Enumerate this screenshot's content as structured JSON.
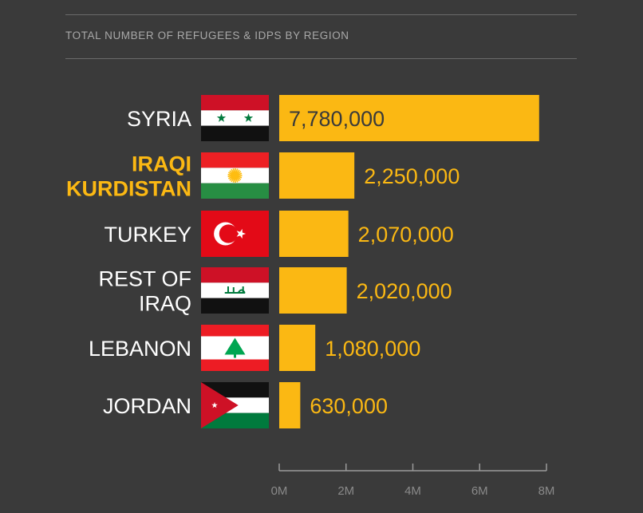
{
  "page": {
    "background": "#3a3a3a"
  },
  "chart_data": {
    "type": "bar",
    "orientation": "horizontal",
    "title": "TOTAL NUMBER OF REFUGEES & IDPS BY REGION",
    "categories": [
      {
        "label": [
          "SYRIA"
        ],
        "highlight": false,
        "flag": "syria-flag"
      },
      {
        "label": [
          "IRAQI",
          "KURDISTAN"
        ],
        "highlight": true,
        "flag": "kurdistan-flag"
      },
      {
        "label": [
          "TURKEY"
        ],
        "highlight": false,
        "flag": "turkey-flag"
      },
      {
        "label": [
          "REST OF",
          "IRAQ"
        ],
        "highlight": false,
        "flag": "iraq-flag"
      },
      {
        "label": [
          "LEBANON"
        ],
        "highlight": false,
        "flag": "lebanon-flag"
      },
      {
        "label": [
          "JORDAN"
        ],
        "highlight": false,
        "flag": "jordan-flag"
      }
    ],
    "values": [
      7780000,
      2250000,
      2070000,
      2020000,
      1080000,
      630000
    ],
    "value_labels": [
      "7,780,000",
      "2,250,000",
      "2,070,000",
      "2,020,000",
      "1,080,000",
      "630,000"
    ],
    "xlim": [
      0,
      8000000
    ],
    "ticks": [
      0,
      2000000,
      4000000,
      6000000,
      8000000
    ],
    "tick_labels": [
      "0M",
      "2M",
      "4M",
      "6M",
      "8M"
    ],
    "grid": false,
    "colors": {
      "bar": "#fbb813",
      "label": "#ffffff",
      "highlight_label": "#fbb813",
      "value_outside": "#fbb813",
      "value_inside": "#3a3a3a",
      "axis": "#9a9a9a",
      "tick_label": "#8a8a8a"
    }
  }
}
